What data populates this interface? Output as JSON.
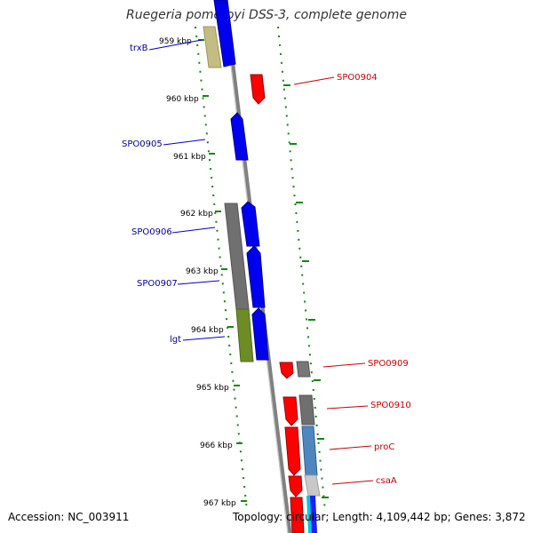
{
  "title": "Ruegeria pomeroyi DSS-3, complete genome",
  "footer": {
    "accession": "Accession: NC_003911",
    "summary": "Topology: circular; Length: 4,109,442 bp; Genes: 3,872"
  },
  "ruler": {
    "ticks": [
      "959 kbp",
      "960 kbp",
      "961 kbp",
      "962 kbp",
      "963 kbp",
      "964 kbp",
      "965 kbp",
      "966 kbp",
      "967 kbp"
    ]
  },
  "genes": {
    "left": [
      "trxB",
      "SPO0905",
      "SPO0906",
      "SPO0907",
      "lgt"
    ],
    "right": [
      "SPO0904",
      "SPO0909",
      "SPO0910",
      "proC",
      "csaA"
    ]
  },
  "colors": {
    "forward_strand": "#0000ff",
    "reverse_strand": "#ff0000",
    "left_label": "#000099",
    "right_label": "#cc0000",
    "ruler": "#118811",
    "backbone": "#888888"
  }
}
